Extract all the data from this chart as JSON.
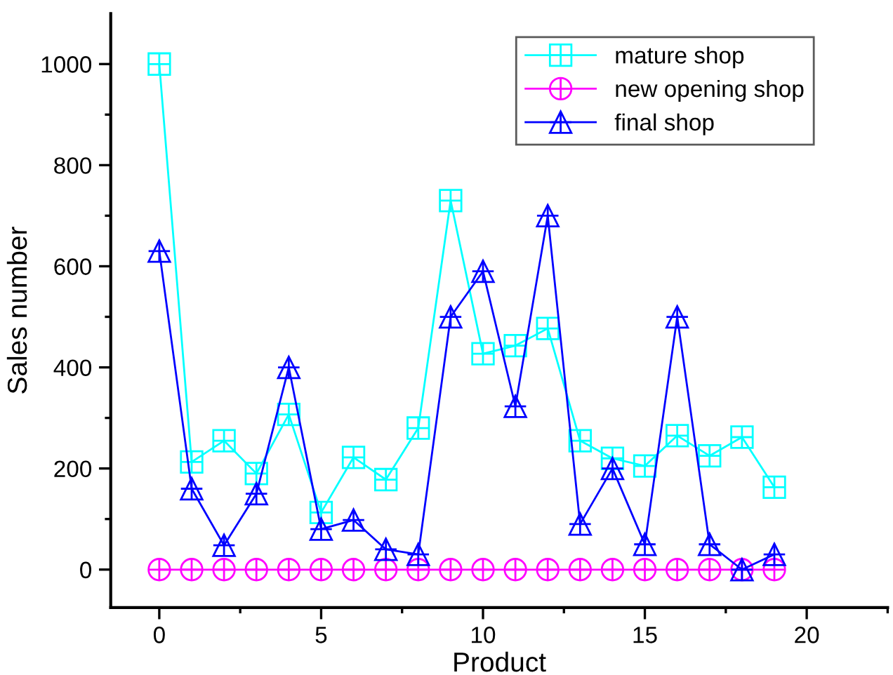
{
  "chart_data": {
    "type": "line",
    "xlabel": "Product",
    "ylabel": "Sales number",
    "x": [
      0,
      1,
      2,
      3,
      4,
      5,
      6,
      7,
      8,
      9,
      10,
      11,
      12,
      13,
      14,
      15,
      16,
      17,
      18,
      19
    ],
    "series": [
      {
        "name": "mature shop",
        "color": "#00ffff",
        "marker": "square",
        "values": [
          1000,
          213,
          255,
          190,
          307,
          113,
          222,
          178,
          280,
          730,
          427,
          443,
          477,
          255,
          220,
          205,
          265,
          225,
          262,
          163
        ]
      },
      {
        "name": "new opening shop",
        "color": "#ff00ff",
        "marker": "circle",
        "values": [
          0,
          0,
          0,
          0,
          0,
          0,
          0,
          0,
          0,
          0,
          0,
          0,
          0,
          0,
          0,
          0,
          0,
          0,
          0,
          0
        ]
      },
      {
        "name": "final shop",
        "color": "#0000ff",
        "marker": "triangle",
        "values": [
          630,
          160,
          48,
          150,
          400,
          80,
          98,
          40,
          30,
          500,
          590,
          323,
          700,
          90,
          200,
          50,
          500,
          50,
          0,
          30
        ]
      }
    ],
    "xlim": [
      -1.5,
      22.5
    ],
    "xticks": [
      0,
      5,
      10,
      15,
      20
    ],
    "ylim": [
      -75,
      1100
    ],
    "yticks": [
      0,
      200,
      400,
      600,
      800,
      1000
    ],
    "grid": false,
    "legend": "top right",
    "line_style": "solid"
  }
}
